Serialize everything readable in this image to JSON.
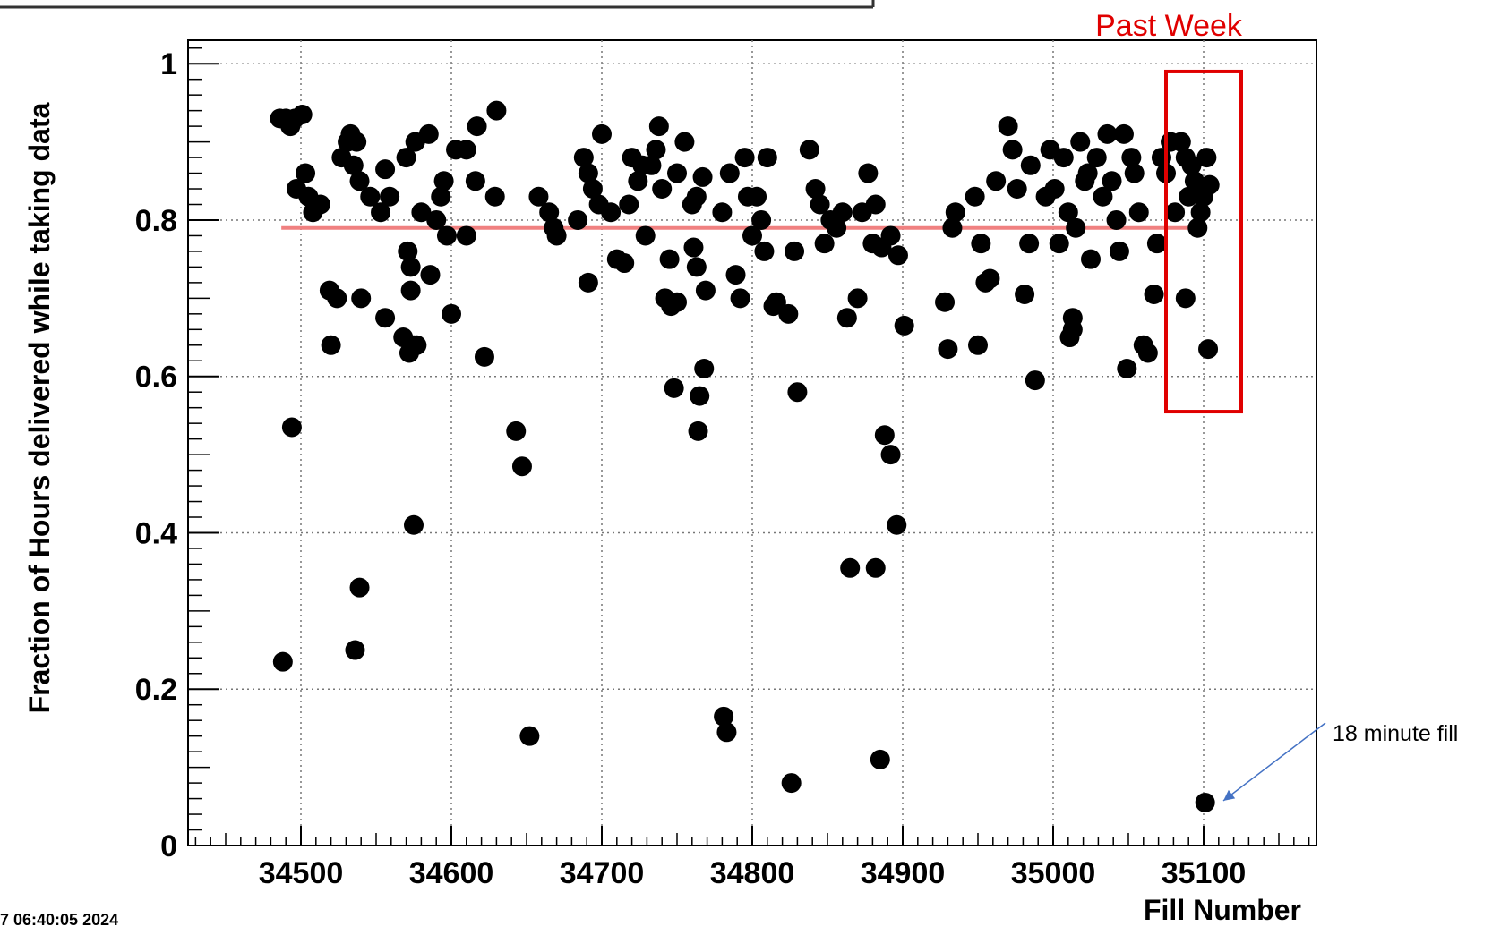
{
  "chart_data": {
    "type": "scatter",
    "title": "",
    "xlabel": "Fill Number",
    "ylabel": "Fraction of Hours delivered while taking data",
    "xlim": [
      34425,
      35175
    ],
    "ylim": [
      0,
      1.03
    ],
    "x_ticks": [
      34500,
      34600,
      34700,
      34800,
      34900,
      35000,
      35100
    ],
    "y_ticks": [
      0,
      0.2,
      0.4,
      0.6,
      0.8,
      1
    ],
    "x_tick_labels": [
      "34500",
      "34600",
      "34700",
      "34800",
      "34900",
      "35000",
      "35100"
    ],
    "y_tick_labels": [
      "0",
      "0.2",
      "0.4",
      "0.6",
      "0.8",
      "1"
    ],
    "grid": true,
    "reference_line": {
      "y": 0.79,
      "x_start": 34487,
      "x_end": 35100,
      "color": "#f08080"
    },
    "highlight_box": {
      "label": "Past Week",
      "x_range": [
        35075,
        35125
      ],
      "y_range": [
        0.555,
        0.99
      ],
      "color": "#e00000"
    },
    "annotation": {
      "text": "18 minute fill",
      "point": [
        35100,
        0.055
      ]
    },
    "timestamp_fragment": "7 06:40:05 2024",
    "points": [
      [
        34486,
        0.93
      ],
      [
        34490,
        0.93
      ],
      [
        34493,
        0.92
      ],
      [
        34496,
        0.93
      ],
      [
        34501,
        0.935
      ],
      [
        34497,
        0.84
      ],
      [
        34503,
        0.86
      ],
      [
        34505,
        0.83
      ],
      [
        34508,
        0.81
      ],
      [
        34513,
        0.82
      ],
      [
        34519,
        0.71
      ],
      [
        34524,
        0.7
      ],
      [
        34527,
        0.88
      ],
      [
        34531,
        0.9
      ],
      [
        34533,
        0.91
      ],
      [
        34535,
        0.87
      ],
      [
        34537,
        0.9
      ],
      [
        34539,
        0.85
      ],
      [
        34540,
        0.7
      ],
      [
        34546,
        0.83
      ],
      [
        34553,
        0.81
      ],
      [
        34556,
        0.865
      ],
      [
        34559,
        0.83
      ],
      [
        34556,
        0.675
      ],
      [
        34520,
        0.64
      ],
      [
        34570,
        0.88
      ],
      [
        34576,
        0.9
      ],
      [
        34580,
        0.81
      ],
      [
        34585,
        0.91
      ],
      [
        34590,
        0.8
      ],
      [
        34593,
        0.83
      ],
      [
        34595,
        0.85
      ],
      [
        34597,
        0.78
      ],
      [
        34603,
        0.89
      ],
      [
        34610,
        0.89
      ],
      [
        34617,
        0.92
      ],
      [
        34630,
        0.94
      ],
      [
        34616,
        0.85
      ],
      [
        34610,
        0.78
      ],
      [
        34629,
        0.83
      ],
      [
        34571,
        0.76
      ],
      [
        34573,
        0.74
      ],
      [
        34568,
        0.65
      ],
      [
        34572,
        0.63
      ],
      [
        34575,
        0.64
      ],
      [
        34577,
        0.64
      ],
      [
        34573,
        0.71
      ],
      [
        34586,
        0.73
      ],
      [
        34600,
        0.68
      ],
      [
        34622,
        0.625
      ],
      [
        34494,
        0.535
      ],
      [
        34488,
        0.235
      ],
      [
        34536,
        0.25
      ],
      [
        34539,
        0.33
      ],
      [
        34575,
        0.41
      ],
      [
        34643,
        0.53
      ],
      [
        34647,
        0.485
      ],
      [
        34652,
        0.14
      ],
      [
        34658,
        0.83
      ],
      [
        34665,
        0.81
      ],
      [
        34668,
        0.79
      ],
      [
        34670,
        0.78
      ],
      [
        34684,
        0.8
      ],
      [
        34688,
        0.88
      ],
      [
        34691,
        0.86
      ],
      [
        34694,
        0.84
      ],
      [
        34698,
        0.82
      ],
      [
        34700,
        0.91
      ],
      [
        34706,
        0.81
      ],
      [
        34710,
        0.75
      ],
      [
        34715,
        0.745
      ],
      [
        34718,
        0.82
      ],
      [
        34720,
        0.88
      ],
      [
        34724,
        0.85
      ],
      [
        34727,
        0.87
      ],
      [
        34729,
        0.78
      ],
      [
        34733,
        0.87
      ],
      [
        34736,
        0.89
      ],
      [
        34738,
        0.92
      ],
      [
        34740,
        0.84
      ],
      [
        34745,
        0.75
      ],
      [
        34750,
        0.86
      ],
      [
        34755,
        0.9
      ],
      [
        34760,
        0.82
      ],
      [
        34763,
        0.83
      ],
      [
        34767,
        0.855
      ],
      [
        34761,
        0.765
      ],
      [
        34763,
        0.74
      ],
      [
        34769,
        0.71
      ],
      [
        34742,
        0.7
      ],
      [
        34746,
        0.69
      ],
      [
        34750,
        0.695
      ],
      [
        34691,
        0.72
      ],
      [
        34748,
        0.585
      ],
      [
        34765,
        0.575
      ],
      [
        34768,
        0.61
      ],
      [
        34764,
        0.53
      ],
      [
        34780,
        0.81
      ],
      [
        34785,
        0.86
      ],
      [
        34789,
        0.73
      ],
      [
        34792,
        0.7
      ],
      [
        34795,
        0.88
      ],
      [
        34797,
        0.83
      ],
      [
        34800,
        0.78
      ],
      [
        34803,
        0.83
      ],
      [
        34806,
        0.8
      ],
      [
        34808,
        0.76
      ],
      [
        34810,
        0.88
      ],
      [
        34814,
        0.69
      ],
      [
        34816,
        0.695
      ],
      [
        34824,
        0.68
      ],
      [
        34828,
        0.76
      ],
      [
        34830,
        0.58
      ],
      [
        34838,
        0.89
      ],
      [
        34842,
        0.84
      ],
      [
        34845,
        0.82
      ],
      [
        34848,
        0.77
      ],
      [
        34852,
        0.8
      ],
      [
        34856,
        0.79
      ],
      [
        34860,
        0.81
      ],
      [
        34863,
        0.675
      ],
      [
        34870,
        0.7
      ],
      [
        34873,
        0.81
      ],
      [
        34877,
        0.86
      ],
      [
        34880,
        0.77
      ],
      [
        34882,
        0.82
      ],
      [
        34886,
        0.765
      ],
      [
        34892,
        0.78
      ],
      [
        34897,
        0.755
      ],
      [
        34901,
        0.665
      ],
      [
        34896,
        0.41
      ],
      [
        34888,
        0.525
      ],
      [
        34892,
        0.5
      ],
      [
        34865,
        0.355
      ],
      [
        34882,
        0.355
      ],
      [
        34885,
        0.11
      ],
      [
        34781,
        0.165
      ],
      [
        34783,
        0.145
      ],
      [
        34826,
        0.08
      ],
      [
        34928,
        0.695
      ],
      [
        34930,
        0.635
      ],
      [
        34933,
        0.79
      ],
      [
        34935,
        0.81
      ],
      [
        34950,
        0.64
      ],
      [
        34948,
        0.83
      ],
      [
        34952,
        0.77
      ],
      [
        34955,
        0.72
      ],
      [
        34958,
        0.725
      ],
      [
        34962,
        0.85
      ],
      [
        34970,
        0.92
      ],
      [
        34973,
        0.89
      ],
      [
        34976,
        0.84
      ],
      [
        34981,
        0.705
      ],
      [
        34984,
        0.77
      ],
      [
        34985,
        0.87
      ],
      [
        34988,
        0.595
      ],
      [
        34995,
        0.83
      ],
      [
        34998,
        0.89
      ],
      [
        35001,
        0.84
      ],
      [
        35004,
        0.77
      ],
      [
        35007,
        0.88
      ],
      [
        35010,
        0.81
      ],
      [
        35013,
        0.675
      ],
      [
        35015,
        0.79
      ],
      [
        35018,
        0.9
      ],
      [
        35021,
        0.85
      ],
      [
        35025,
        0.75
      ],
      [
        35029,
        0.88
      ],
      [
        35033,
        0.83
      ],
      [
        35036,
        0.91
      ],
      [
        35039,
        0.85
      ],
      [
        35042,
        0.8
      ],
      [
        35044,
        0.76
      ],
      [
        35047,
        0.91
      ],
      [
        35049,
        0.61
      ],
      [
        35052,
        0.88
      ],
      [
        35054,
        0.86
      ],
      [
        35057,
        0.81
      ],
      [
        35060,
        0.64
      ],
      [
        35063,
        0.63
      ],
      [
        35067,
        0.705
      ],
      [
        35069,
        0.77
      ],
      [
        35072,
        0.88
      ],
      [
        35075,
        0.86
      ],
      [
        35078,
        0.9
      ],
      [
        35081,
        0.81
      ],
      [
        35085,
        0.9
      ],
      [
        35088,
        0.88
      ],
      [
        35090,
        0.83
      ],
      [
        35092,
        0.87
      ],
      [
        35094,
        0.85
      ],
      [
        35096,
        0.79
      ],
      [
        35098,
        0.81
      ],
      [
        35100,
        0.83
      ],
      [
        35102,
        0.88
      ],
      [
        35104,
        0.845
      ],
      [
        35088,
        0.7
      ],
      [
        35103,
        0.635
      ],
      [
        35101,
        0.055
      ],
      [
        35011,
        0.65
      ],
      [
        35013,
        0.66
      ],
      [
        35023,
        0.86
      ]
    ]
  }
}
